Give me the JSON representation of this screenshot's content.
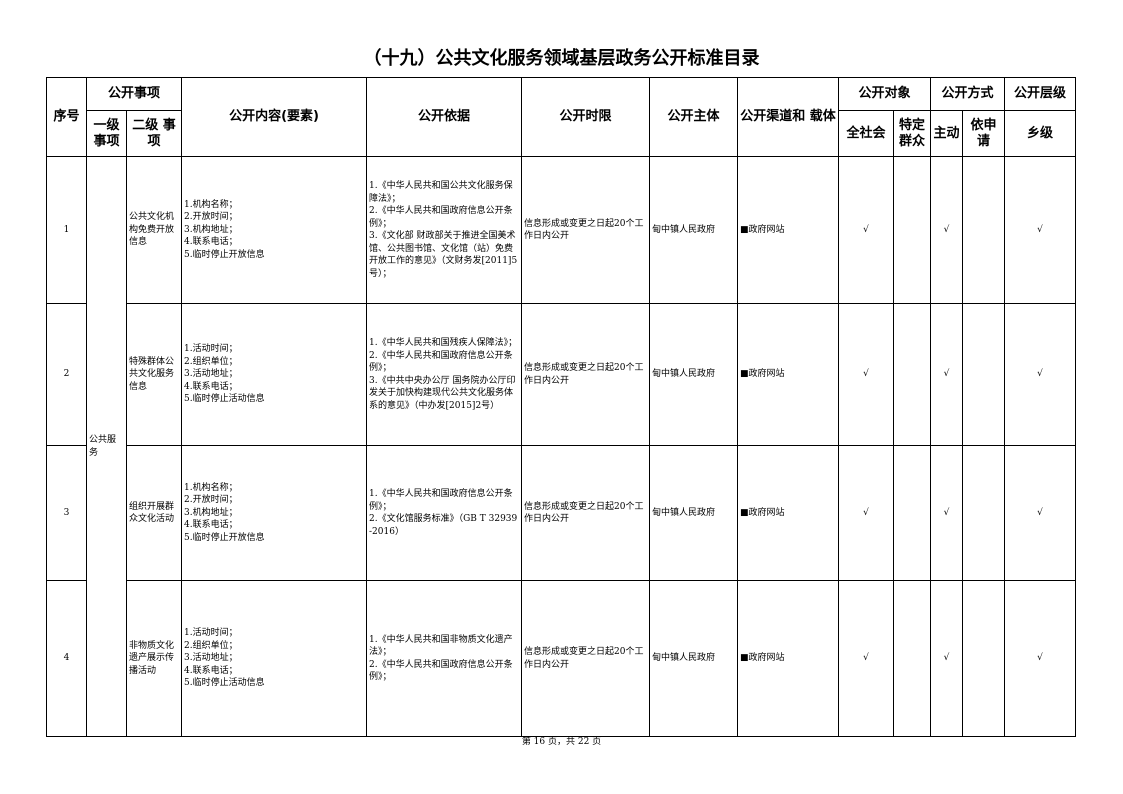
{
  "title": "（十九）公共文化服务领域基层政务公开标准目录",
  "headers": {
    "seq": "序号",
    "item": "公开事项",
    "level1": "一级事项",
    "level2": "二级 事项",
    "content": "公开内容(要素)",
    "basis": "公开依据",
    "deadline": "公开时限",
    "subject": "公开主体",
    "channel": "公开渠道和 载体",
    "target": "公开对象",
    "target_all": "全社会",
    "target_specific": "特定群众",
    "method": "公开方式",
    "method_active": "主动",
    "method_request": "依申请",
    "tier": "公开层级",
    "tier_town": "乡级"
  },
  "level1_value": "公共服务",
  "rows": [
    {
      "seq": "1",
      "level2": "公共文化机构免费开放信息",
      "content": "1.机构名称；\n2.开放时间；\n3.机构地址；\n4.联系电话；\n5.临时停止开放信息",
      "basis": "1.《中华人民共和国公共文化服务保障法》；\n2.《中华人民共和国政府信息公开条例》；\n3.《文化部 财政部关于推进全国美术馆、公共图书馆、文化馆（站）免费开放工作的意见》（文财务发[2011]5号）；",
      "deadline": "信息形成或变更之日起20个工作日内公开",
      "subject": "甸中镇人民政府",
      "channel": "■政府网站",
      "all": "√",
      "specific": "",
      "active": "√",
      "request": "",
      "town": "√"
    },
    {
      "seq": "2",
      "level2": "特殊群体公共文化服务信息",
      "content": "1.活动时间；\n2.组织单位；\n3.活动地址；\n4.联系电话；\n5.临时停止活动信息",
      "basis": "1.《中华人民共和国残疾人保障法》；\n2.《中华人民共和国政府信息公开条例》；\n3.《中共中央办公厅 国务院办公厅印发关于加快构建现代公共文化服务体系的意见》（中办发[2015]2号）",
      "deadline": "信息形成或变更之日起20个工作日内公开",
      "subject": "甸中镇人民政府",
      "channel": "■政府网站",
      "all": "√",
      "specific": "",
      "active": "√",
      "request": "",
      "town": "√"
    },
    {
      "seq": "3",
      "level2": "组织开展群众文化活动",
      "content": "1.机构名称；\n2.开放时间；\n3.机构地址；\n4.联系电话；\n5.临时停止开放信息",
      "basis": "1.《中华人民共和国政府信息公开条例》；\n2.《文化馆服务标准》（GB T 32939-2016）",
      "deadline": "信息形成或变更之日起20个工作日内公开",
      "subject": "甸中镇人民政府",
      "channel": "■政府网站",
      "all": "√",
      "specific": "",
      "active": "√",
      "request": "",
      "town": "√"
    },
    {
      "seq": "4",
      "level2": "非物质文化遗产展示传播活动",
      "content": "1.活动时间；\n2.组织单位；\n3.活动地址；\n4.联系电话；\n5.临时停止活动信息",
      "basis": "1.《中华人民共和国非物质文化遗产法》；\n2.《中华人民共和国政府信息公开条例》；",
      "deadline": "信息形成或变更之日起20个工作日内公开",
      "subject": "甸中镇人民政府",
      "channel": "■政府网站",
      "all": "√",
      "specific": "",
      "active": "√",
      "request": "",
      "town": "√"
    }
  ],
  "footer": "第 16 页，共 22 页"
}
